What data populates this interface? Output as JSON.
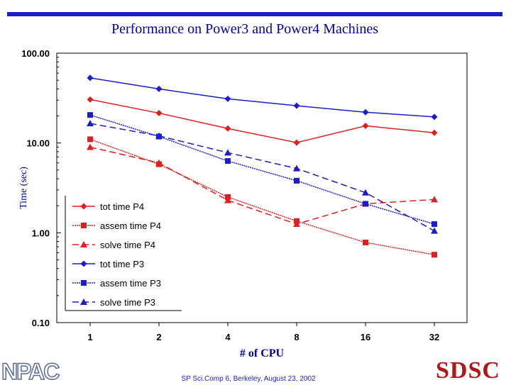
{
  "title": "Performance on Power3 and Power4 Machines",
  "footer": "SP Sci.Comp 6, Berkeley, August 23, 2002",
  "logo_left": "NPAC",
  "logo_right": "SDSC",
  "chart_data": {
    "type": "line",
    "title": "Performance on Power3 and Power4 Machines",
    "xlabel": "# of CPU",
    "ylabel": "Time (sec)",
    "yscale": "log",
    "ylim": [
      0.1,
      100
    ],
    "yticks": [
      0.1,
      1,
      10,
      100
    ],
    "yticklabels": [
      "0.10",
      "1.00",
      "10.00",
      "100.00"
    ],
    "categories": [
      "1",
      "2",
      "4",
      "8",
      "16",
      "32"
    ],
    "grid": false,
    "legend_position": "lower-left",
    "series": [
      {
        "name": "tot time P4",
        "color": "#e02020",
        "marker": "diamond",
        "dash": "solid",
        "values": [
          30.5,
          21.5,
          14.5,
          10.1,
          15.5,
          13.0
        ]
      },
      {
        "name": "assem time P4",
        "color": "#e02020",
        "marker": "square",
        "dash": "dotted",
        "values": [
          11.0,
          5.8,
          2.5,
          1.35,
          0.78,
          0.57
        ]
      },
      {
        "name": "solve time P4",
        "color": "#e02020",
        "marker": "triangle",
        "dash": "dashed",
        "values": [
          9.0,
          6.0,
          2.3,
          1.25,
          2.1,
          2.35
        ]
      },
      {
        "name": "tot time P3",
        "color": "#1c1cc8",
        "marker": "diamond",
        "dash": "solid",
        "values": [
          53.0,
          40.0,
          31.0,
          26.0,
          22.0,
          19.5
        ]
      },
      {
        "name": "assem time P3",
        "color": "#1c1cc8",
        "marker": "square",
        "dash": "dotted",
        "values": [
          20.5,
          11.8,
          6.3,
          3.8,
          2.1,
          1.25
        ]
      },
      {
        "name": "solve time P3",
        "color": "#1c1cc8",
        "marker": "triangle",
        "dash": "dashed",
        "values": [
          16.5,
          12.0,
          7.8,
          5.2,
          2.8,
          1.05
        ]
      }
    ]
  }
}
